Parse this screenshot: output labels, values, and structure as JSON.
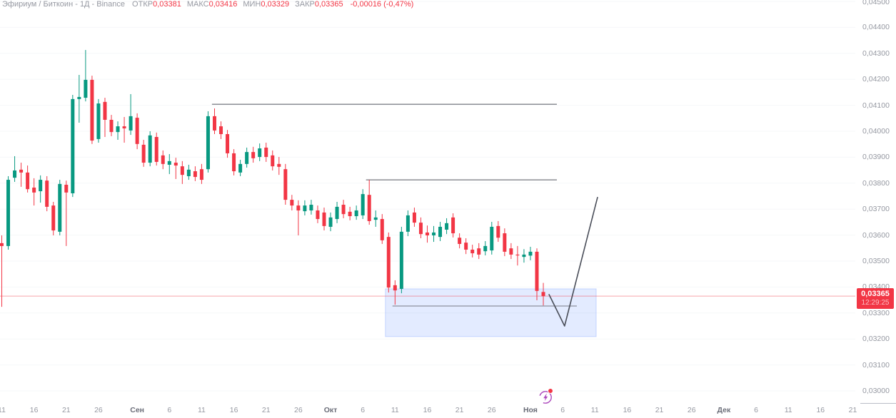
{
  "header": {
    "symbol_title": "Эфириум / Биткоин",
    "interval_exchange": "- 1Д - Binance",
    "open_label": "ОТКР",
    "open_value": "0,03381",
    "high_label": "МАКС",
    "high_value": "0,03416",
    "low_label": "МИН",
    "low_value": "0,03329",
    "close_label": "ЗАКР",
    "close_value": "0,03365",
    "change_value": "-0,00016 (-0,47%)"
  },
  "price_tag": {
    "price": "0,03365",
    "countdown": "12:29:25"
  },
  "colors": {
    "up": "#089981",
    "down": "#f23645",
    "accent_red": "#f23645",
    "drawing_line": "#50545e",
    "projection_line": "#4a4e59",
    "rect_fill": "rgba(41,98,255,0.13)",
    "rect_border": "rgba(41,98,255,0.22)",
    "inner_line": "#787b86",
    "grid": "#f6f7f9",
    "axis_text": "#9598a1",
    "icon_purple": "#ab47bc"
  },
  "chart_data": {
    "type": "candlestick",
    "title": "Эфириум / Биткоин - 1Д - Binance",
    "y_axis": {
      "min": 0.03,
      "max": 0.045,
      "step": 0.001,
      "tick_labels": [
        "0,03000",
        "0,03100",
        "0,03200",
        "0,03300",
        "0,03400",
        "0,03500",
        "0,03600",
        "0,03700",
        "0,03800",
        "0,03900",
        "0,04000",
        "0,04100",
        "0,04200",
        "0,04300",
        "0,04400",
        "0,04500"
      ]
    },
    "x_axis_labels": [
      {
        "label": "11",
        "day": 0
      },
      {
        "label": "16",
        "day": 5
      },
      {
        "label": "21",
        "day": 10
      },
      {
        "label": "26",
        "day": 15
      },
      {
        "label": "Сен",
        "day": 21
      },
      {
        "label": "6",
        "day": 26
      },
      {
        "label": "11",
        "day": 31
      },
      {
        "label": "16",
        "day": 36
      },
      {
        "label": "21",
        "day": 41
      },
      {
        "label": "26",
        "day": 46
      },
      {
        "label": "Окт",
        "day": 51
      },
      {
        "label": "6",
        "day": 56
      },
      {
        "label": "11",
        "day": 61
      },
      {
        "label": "16",
        "day": 66
      },
      {
        "label": "21",
        "day": 71
      },
      {
        "label": "26",
        "day": 76
      },
      {
        "label": "Ноя",
        "day": 82
      },
      {
        "label": "6",
        "day": 87
      },
      {
        "label": "11",
        "day": 92
      },
      {
        "label": "16",
        "day": 97
      },
      {
        "label": "21",
        "day": 102
      },
      {
        "label": "26",
        "day": 107
      },
      {
        "label": "Дек",
        "day": 112
      },
      {
        "label": "6",
        "day": 117
      },
      {
        "label": "11",
        "day": 122
      },
      {
        "label": "16",
        "day": 127
      },
      {
        "label": "21",
        "day": 132
      }
    ],
    "current_price": 0.03365,
    "last_candle_ohlc": {
      "open": 0.03381,
      "high": 0.03416,
      "low": 0.03329,
      "close": 0.03365
    },
    "candles": [
      [
        0.03569,
        0.03599,
        0.03324,
        0.03558
      ],
      [
        0.03558,
        0.03827,
        0.03544,
        0.03813
      ],
      [
        0.03821,
        0.03904,
        0.03805,
        0.03849
      ],
      [
        0.03852,
        0.03879,
        0.03786,
        0.03841
      ],
      [
        0.03841,
        0.03868,
        0.03764,
        0.03777
      ],
      [
        0.03783,
        0.03819,
        0.03714,
        0.03764
      ],
      [
        0.03769,
        0.0383,
        0.03725,
        0.03813
      ],
      [
        0.0381,
        0.03827,
        0.03692,
        0.03709
      ],
      [
        0.03714,
        0.03728,
        0.03599,
        0.03618
      ],
      [
        0.03613,
        0.03813,
        0.03599,
        0.03797
      ],
      [
        0.03794,
        0.0381,
        0.03558,
        0.03764
      ],
      [
        0.03761,
        0.0414,
        0.03747,
        0.04124
      ],
      [
        0.04124,
        0.04217,
        0.04033,
        0.04132
      ],
      [
        0.04129,
        0.04313,
        0.04115,
        0.04198
      ],
      [
        0.04198,
        0.04214,
        0.03951,
        0.03964
      ],
      [
        0.0397,
        0.04124,
        0.03956,
        0.04107
      ],
      [
        0.04113,
        0.04129,
        0.03978,
        0.04044
      ],
      [
        0.04044,
        0.04063,
        0.03981,
        0.03997
      ],
      [
        0.03997,
        0.04038,
        0.03967,
        0.04019
      ],
      [
        0.04019,
        0.04055,
        0.03956,
        0.04011
      ],
      [
        0.04003,
        0.04143,
        0.03986,
        0.04058
      ],
      [
        0.04052,
        0.04069,
        0.03931,
        0.03951
      ],
      [
        0.03948,
        0.03967,
        0.03863,
        0.03879
      ],
      [
        0.03879,
        0.04,
        0.03865,
        0.03984
      ],
      [
        0.03978,
        0.03995,
        0.03868,
        0.03882
      ],
      [
        0.03907,
        0.03926,
        0.03854,
        0.03874
      ],
      [
        0.03871,
        0.03912,
        0.03835,
        0.03885
      ],
      [
        0.03879,
        0.03898,
        0.03816,
        0.03868
      ],
      [
        0.03865,
        0.03885,
        0.03797,
        0.03832
      ],
      [
        0.03827,
        0.03871,
        0.03813,
        0.03852
      ],
      [
        0.03846,
        0.03865,
        0.03808,
        0.03824
      ],
      [
        0.03854,
        0.03874,
        0.03797,
        0.03813
      ],
      [
        0.03854,
        0.04077,
        0.03841,
        0.04058
      ],
      [
        0.04058,
        0.04088,
        0.03989,
        0.04003
      ],
      [
        0.04019,
        0.04038,
        0.0397,
        0.03989
      ],
      [
        0.03989,
        0.04005,
        0.03898,
        0.03915
      ],
      [
        0.03915,
        0.03931,
        0.0383,
        0.03846
      ],
      [
        0.03841,
        0.0389,
        0.03827,
        0.03874
      ],
      [
        0.03874,
        0.03937,
        0.0386,
        0.0392
      ],
      [
        0.0392,
        0.0394,
        0.03879,
        0.03896
      ],
      [
        0.03901,
        0.03953,
        0.03885,
        0.03934
      ],
      [
        0.03937,
        0.03956,
        0.03882,
        0.03901
      ],
      [
        0.03907,
        0.03926,
        0.03849,
        0.03865
      ],
      [
        0.03874,
        0.03901,
        0.03832,
        0.03863
      ],
      [
        0.03854,
        0.03874,
        0.03717,
        0.03736
      ],
      [
        0.03736,
        0.03755,
        0.03695,
        0.03714
      ],
      [
        0.03714,
        0.03734,
        0.03599,
        0.03695
      ],
      [
        0.03692,
        0.03734,
        0.03676,
        0.03714
      ],
      [
        0.03695,
        0.03736,
        0.03679,
        0.03717
      ],
      [
        0.03695,
        0.03714,
        0.03646,
        0.03662
      ],
      [
        0.03687,
        0.03706,
        0.03618,
        0.03635
      ],
      [
        0.03632,
        0.03687,
        0.03615,
        0.03668
      ],
      [
        0.03662,
        0.03728,
        0.03646,
        0.03709
      ],
      [
        0.03717,
        0.03736,
        0.03665,
        0.03681
      ],
      [
        0.0369,
        0.03709,
        0.03657,
        0.03673
      ],
      [
        0.03673,
        0.03714,
        0.03659,
        0.03695
      ],
      [
        0.03676,
        0.03777,
        0.03662,
        0.03758
      ],
      [
        0.03755,
        0.03813,
        0.0364,
        0.03654
      ],
      [
        0.03659,
        0.03695,
        0.03632,
        0.03668
      ],
      [
        0.03662,
        0.03681,
        0.03566,
        0.0358
      ],
      [
        0.03593,
        0.0361,
        0.03379,
        0.03398
      ],
      [
        0.03407,
        0.03426,
        0.03332,
        0.03387
      ],
      [
        0.03393,
        0.03632,
        0.03376,
        0.03613
      ],
      [
        0.03613,
        0.03695,
        0.03596,
        0.03676
      ],
      [
        0.03687,
        0.03706,
        0.03632,
        0.03648
      ],
      [
        0.03648,
        0.03668,
        0.03588,
        0.03604
      ],
      [
        0.0361,
        0.03637,
        0.03571,
        0.03599
      ],
      [
        0.03599,
        0.03635,
        0.03574,
        0.0361
      ],
      [
        0.03593,
        0.03651,
        0.03577,
        0.03632
      ],
      [
        0.03621,
        0.03665,
        0.03604,
        0.03646
      ],
      [
        0.03668,
        0.03684,
        0.03591,
        0.03607
      ],
      [
        0.0359,
        0.03607,
        0.03549,
        0.03566
      ],
      [
        0.03571,
        0.03588,
        0.03527,
        0.03544
      ],
      [
        0.03544,
        0.03563,
        0.03514,
        0.0353
      ],
      [
        0.03549,
        0.03569,
        0.03508,
        0.03525
      ],
      [
        0.03538,
        0.03577,
        0.03522,
        0.03558
      ],
      [
        0.03541,
        0.03651,
        0.03525,
        0.03632
      ],
      [
        0.03635,
        0.03654,
        0.03574,
        0.0359
      ],
      [
        0.03607,
        0.03626,
        0.03519,
        0.03536
      ],
      [
        0.03549,
        0.03569,
        0.03508,
        0.03525
      ],
      [
        0.03525,
        0.03558,
        0.03483,
        0.03522
      ],
      [
        0.03516,
        0.03546,
        0.03494,
        0.03525
      ],
      [
        0.03521,
        0.03555,
        0.03503,
        0.03536
      ],
      [
        0.03536,
        0.03549,
        0.03349,
        0.03385
      ],
      [
        0.03381,
        0.03416,
        0.03329,
        0.03365
      ]
    ],
    "drawings": {
      "horizontal_rays": [
        {
          "price": 0.04104,
          "from": 32.6,
          "to": 86.1
        },
        {
          "price": 0.03813,
          "from": 56.5,
          "to": 86.1
        }
      ],
      "rectangle": {
        "from": 59.5,
        "to": 92.2,
        "top": 0.03393,
        "bottom": 0.03209
      },
      "inner_level_line": {
        "price": 0.03327,
        "from": 60.6,
        "to": 89.2
      },
      "projection_polyline": [
        [
          84.9,
          0.03371
        ],
        [
          87.3,
          0.0325
        ],
        [
          92.4,
          0.03745
        ]
      ]
    }
  }
}
